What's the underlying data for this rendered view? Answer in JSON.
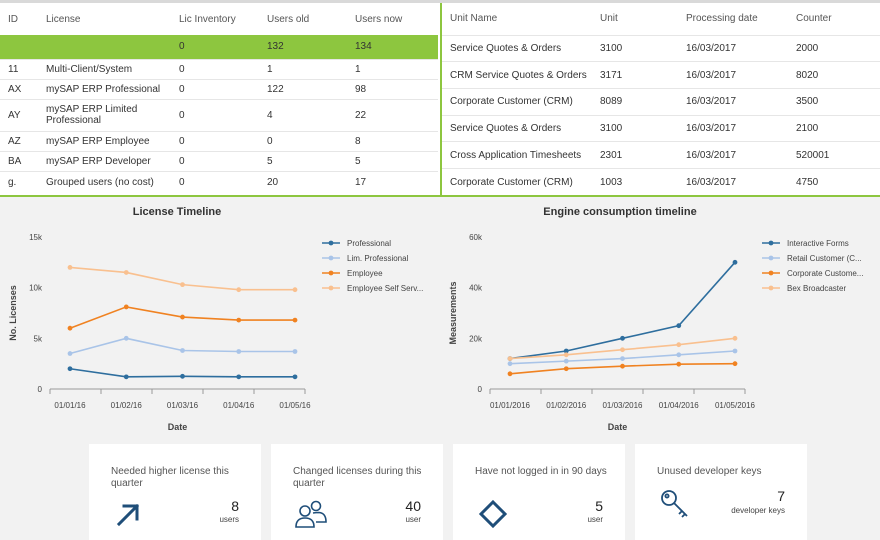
{
  "license_table": {
    "headers": [
      "ID",
      "License",
      "Lic Inventory",
      "Users old",
      "Users now"
    ],
    "highlight_row": [
      "",
      "",
      "0",
      "132",
      "134"
    ],
    "rows": [
      [
        "11",
        "Multi-Client/System",
        "0",
        "1",
        "1"
      ],
      [
        "AX",
        "mySAP ERP Professional",
        "0",
        "122",
        "98"
      ],
      [
        "AY",
        "mySAP ERP Limited Professional",
        "0",
        "4",
        "22"
      ],
      [
        "AZ",
        "mySAP ERP Employee",
        "0",
        "0",
        "8"
      ],
      [
        "BA",
        "mySAP ERP Developer",
        "0",
        "5",
        "5"
      ],
      [
        "g.",
        "Grouped users (no cost)",
        "0",
        "20",
        "17"
      ]
    ]
  },
  "unit_table": {
    "headers": [
      "Unit Name",
      "Unit",
      "Processing date",
      "Counter"
    ],
    "rows": [
      [
        "Service Quotes & Orders",
        "3100",
        "16/03/2017",
        "2000"
      ],
      [
        "CRM Service Quotes & Orders",
        "3171",
        "16/03/2017",
        "8020"
      ],
      [
        "Corporate Customer (CRM)",
        "8089",
        "16/03/2017",
        "3500"
      ],
      [
        "Service Quotes & Orders",
        "3100",
        "16/03/2017",
        "2100"
      ],
      [
        "Cross Application Timesheets",
        "2301",
        "16/03/2017",
        "520001"
      ],
      [
        "Corporate Customer (CRM)",
        "1003",
        "16/03/2017",
        "4750"
      ]
    ]
  },
  "chart_data": [
    {
      "type": "line",
      "title": "License Timeline",
      "xlabel": "Date",
      "ylabel": "No. Licenses",
      "x": [
        "01/01/16",
        "01/02/16",
        "01/03/16",
        "01/04/16",
        "01/05/16"
      ],
      "yticks": [
        "0",
        "5k",
        "10k",
        "15k"
      ],
      "ylim": [
        0,
        15000
      ],
      "grid": false,
      "legend": "right",
      "series": [
        {
          "name": "Professional",
          "color": "#2e6e9e",
          "values": [
            2000,
            1200,
            1250,
            1200,
            1200
          ]
        },
        {
          "name": "Lim. Professional",
          "color": "#a9c4e8",
          "values": [
            3500,
            5000,
            3800,
            3700,
            3700
          ]
        },
        {
          "name": "Employee",
          "color": "#f08221",
          "values": [
            6000,
            8100,
            7100,
            6800,
            6800
          ]
        },
        {
          "name": "Employee Self Serv...",
          "color": "#f9c08f",
          "values": [
            12000,
            11500,
            10300,
            9800,
            9800
          ]
        }
      ]
    },
    {
      "type": "line",
      "title": "Engine consumption timeline",
      "xlabel": "Date",
      "ylabel": "Measurements",
      "x": [
        "01/01/2016",
        "01/02/2016",
        "01/03/2016",
        "01/04/2016",
        "01/05/2016"
      ],
      "yticks": [
        "0",
        "20k",
        "40k",
        "60k"
      ],
      "ylim": [
        0,
        60000
      ],
      "grid": false,
      "legend": "right",
      "series": [
        {
          "name": "Interactive Forms",
          "color": "#2e6e9e",
          "values": [
            12000,
            15000,
            20000,
            25000,
            50000
          ]
        },
        {
          "name": "Retail Customer (C...",
          "color": "#a9c4e8",
          "values": [
            10000,
            11000,
            12000,
            13500,
            15000
          ]
        },
        {
          "name": "Corporate Custome...",
          "color": "#f08221",
          "values": [
            6000,
            8000,
            9000,
            9800,
            10000
          ]
        },
        {
          "name": "Bex Broadcaster",
          "color": "#f9c08f",
          "values": [
            12000,
            13500,
            15500,
            17500,
            20000
          ]
        }
      ]
    }
  ],
  "cards": [
    {
      "title": "Needed higher license this quarter",
      "value": "8",
      "unit": "users",
      "icon": "arrow-up-right-icon"
    },
    {
      "title": "Changed licenses during this quarter",
      "value": "40",
      "unit": "user",
      "icon": "users-icon"
    },
    {
      "title": "Have not logged in in 90 days",
      "value": "5",
      "unit": "user",
      "icon": "diamond-icon"
    },
    {
      "title": "Unused developer keys",
      "value": "7",
      "unit": "developer keys",
      "icon": "key-icon"
    }
  ],
  "colors": {
    "accent": "#8dc63f",
    "icon": "#1f4e79"
  }
}
